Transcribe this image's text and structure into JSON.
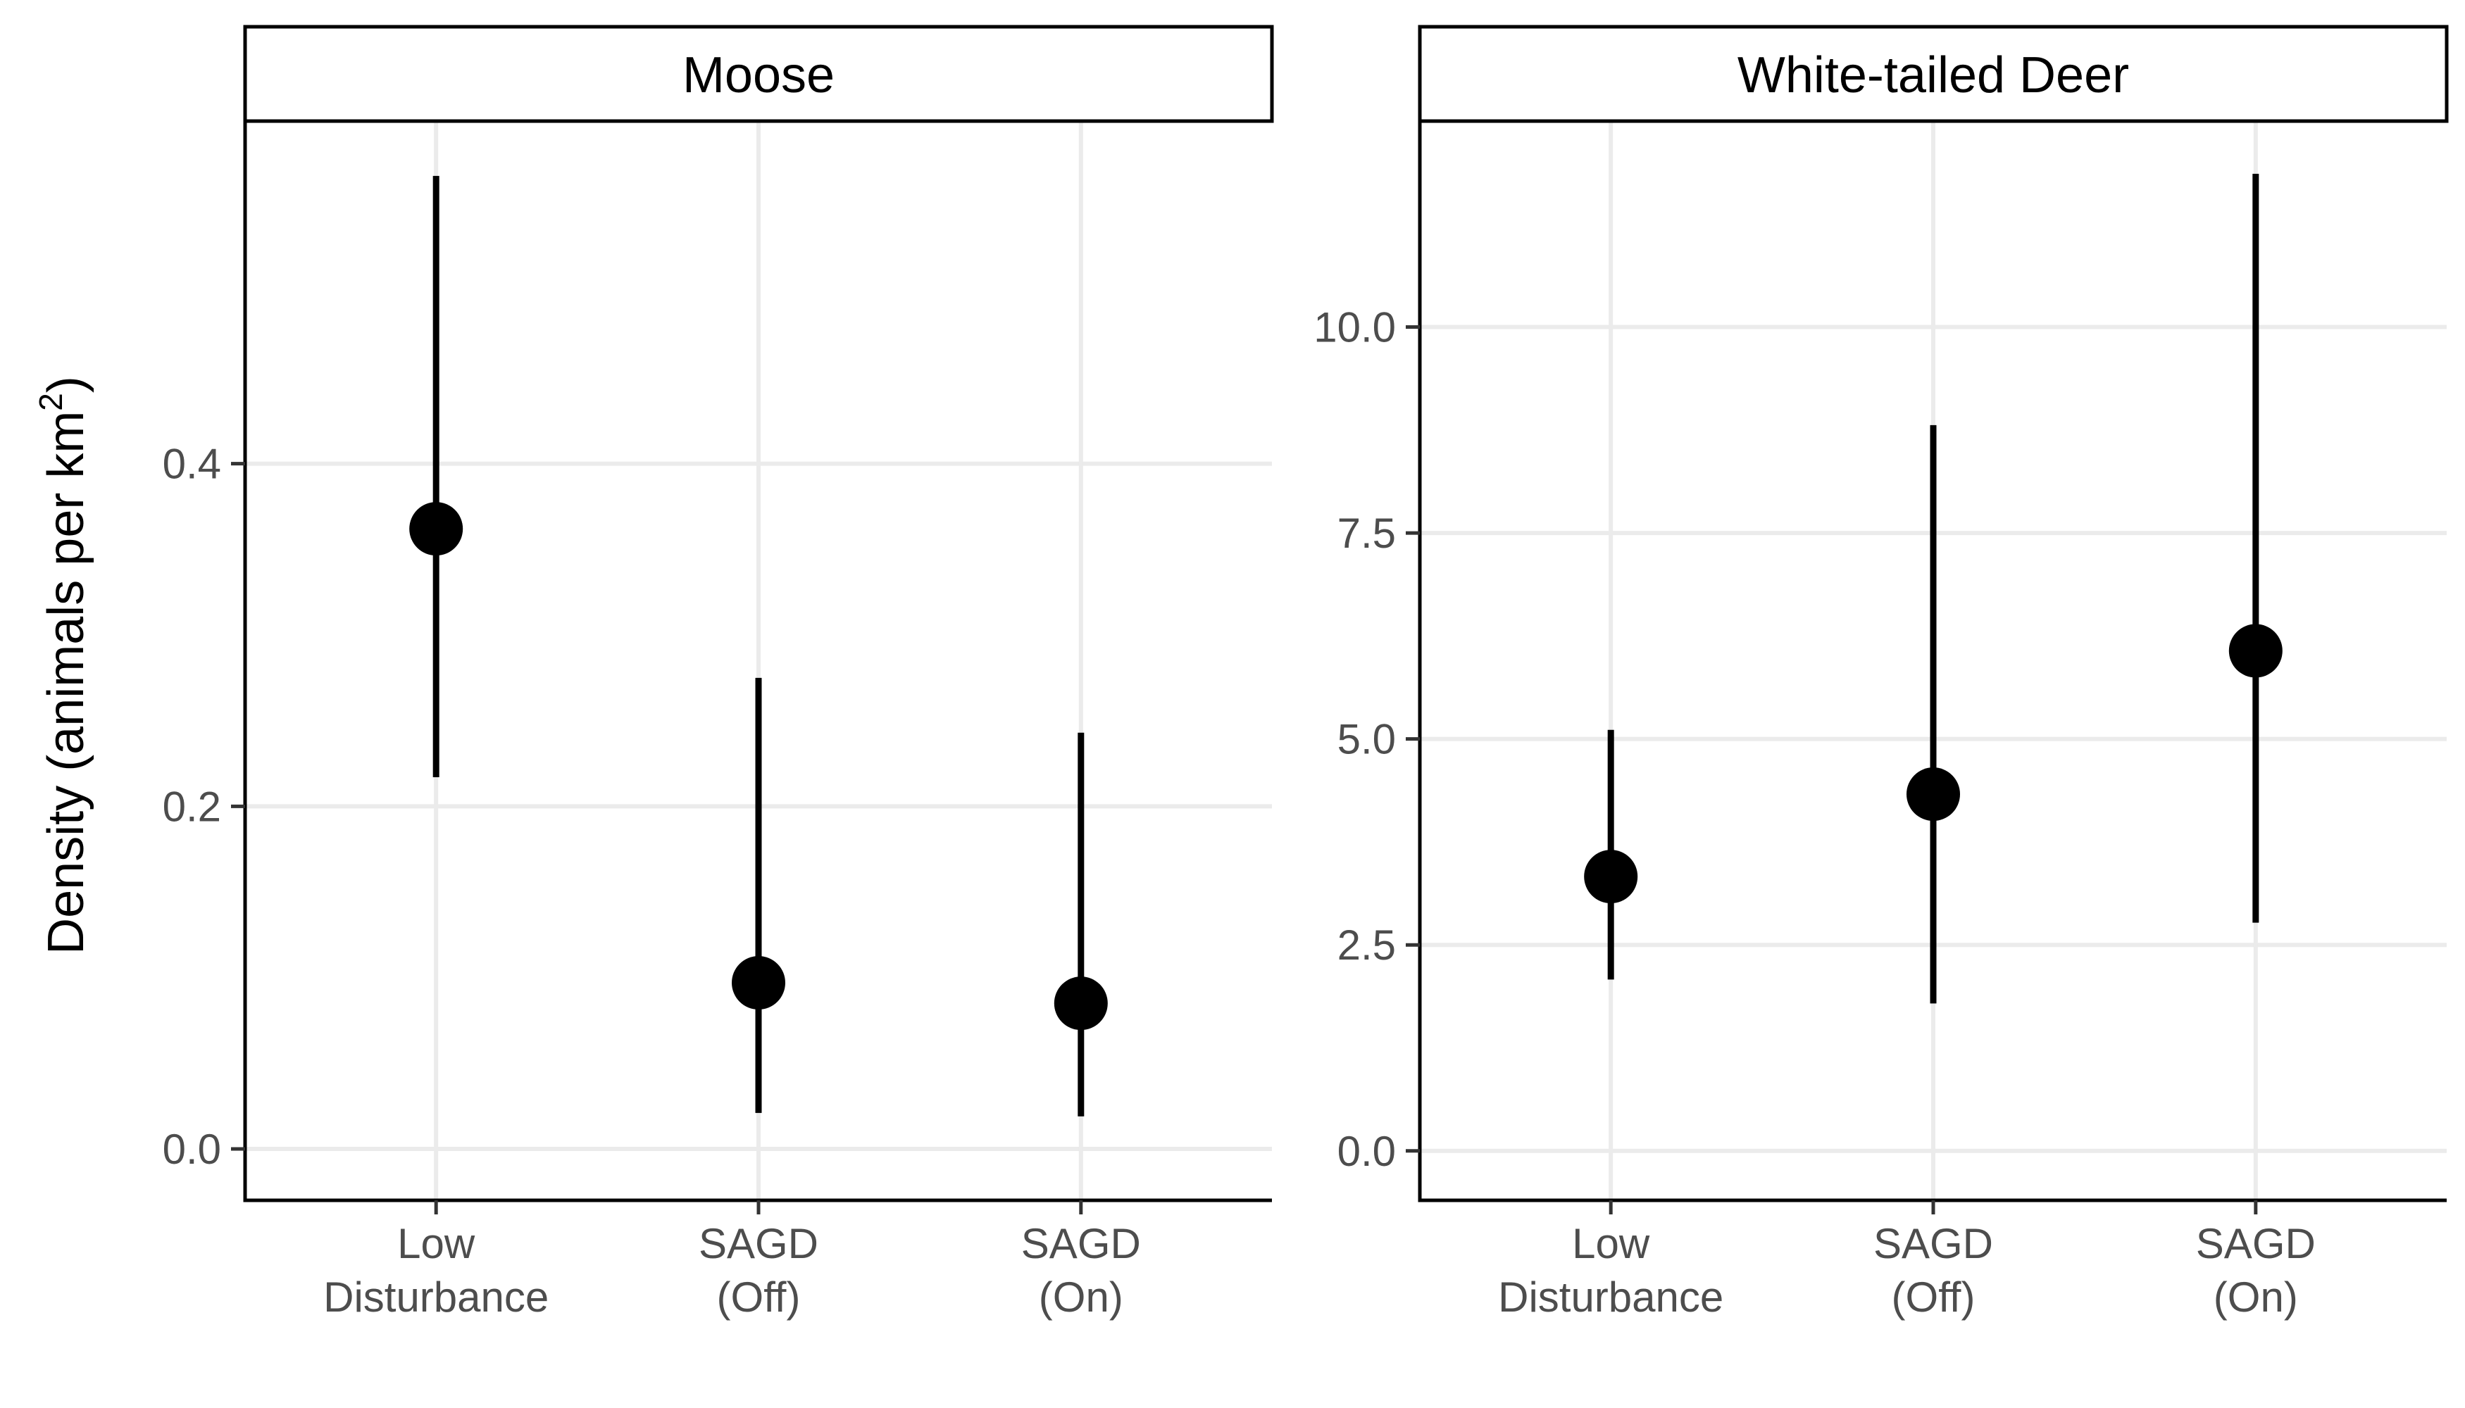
{
  "chart_data": {
    "type": "pointrange",
    "ylabel_main": "Density (animals per km",
    "ylabel_sup": "2",
    "ylabel_close": ")",
    "categories": [
      [
        "Low",
        "Disturbance"
      ],
      [
        "SAGD",
        "(Off)"
      ],
      [
        "SAGD",
        "(On)"
      ]
    ],
    "panels": [
      {
        "title": "Moose",
        "ylim": [
          -0.03,
          0.6
        ],
        "yticks": [
          0.0,
          0.2,
          0.4
        ],
        "ytick_labels": [
          "0.0",
          "0.2",
          "0.4"
        ],
        "points": [
          {
            "category": "Low Disturbance",
            "estimate": 0.362,
            "lower": 0.217,
            "upper": 0.568
          },
          {
            "category": "SAGD (Off)",
            "estimate": 0.097,
            "lower": 0.021,
            "upper": 0.275
          },
          {
            "category": "SAGD (On)",
            "estimate": 0.085,
            "lower": 0.019,
            "upper": 0.243
          }
        ]
      },
      {
        "title": "White-tailed Deer",
        "ylim": [
          -0.6,
          12.5
        ],
        "yticks": [
          0.0,
          2.5,
          5.0,
          7.5,
          10.0
        ],
        "ytick_labels": [
          "0.0",
          "2.5",
          "5.0",
          "7.5",
          "10.0"
        ],
        "points": [
          {
            "category": "Low Disturbance",
            "estimate": 3.33,
            "lower": 2.08,
            "upper": 5.11
          },
          {
            "category": "SAGD (Off)",
            "estimate": 4.33,
            "lower": 1.79,
            "upper": 8.81
          },
          {
            "category": "SAGD (On)",
            "estimate": 6.07,
            "lower": 2.77,
            "upper": 11.86
          }
        ]
      }
    ]
  }
}
